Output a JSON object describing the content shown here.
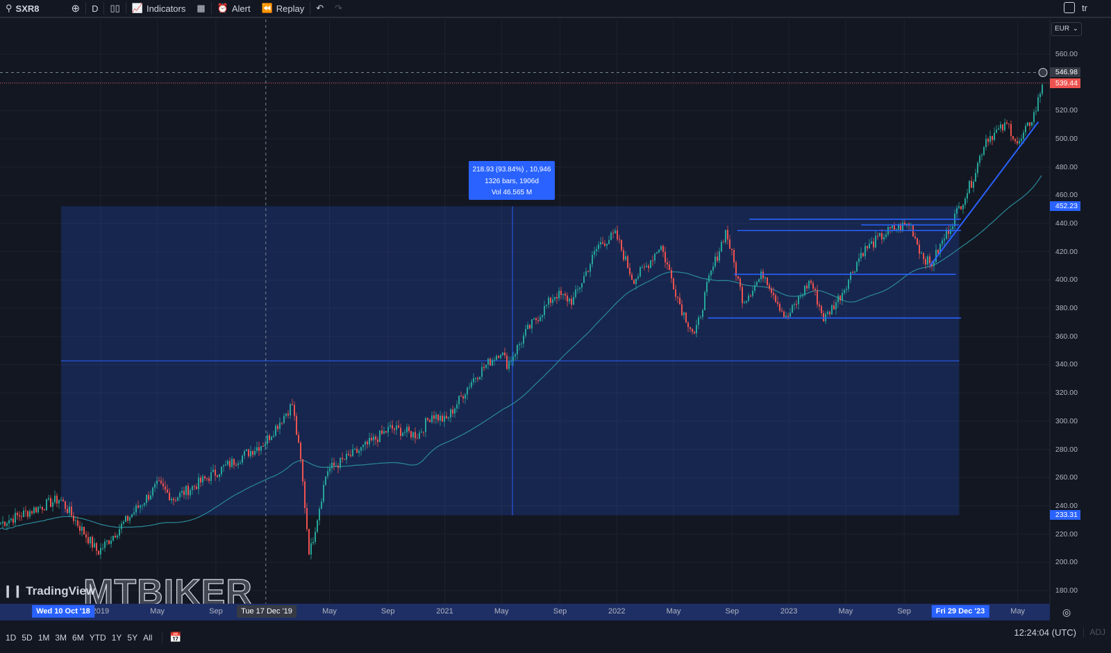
{
  "toolbar": {
    "symbol": "SXR8",
    "interval": "D",
    "indicators": "Indicators",
    "alert": "Alert",
    "replay": "Replay",
    "right_text": "tr"
  },
  "price_axis": {
    "currency": "EUR",
    "ticks": [
      "560.00",
      "540.00",
      "520.00",
      "500.00",
      "480.00",
      "460.00",
      "440.00",
      "420.00",
      "400.00",
      "380.00",
      "360.00",
      "340.00",
      "320.00",
      "300.00",
      "280.00",
      "260.00",
      "240.00",
      "220.00",
      "200.00",
      "180.00"
    ],
    "crosshair_label": "546.98",
    "last_price_label": "539.44",
    "range_top_label": "452.23",
    "range_bottom_label": "233.31"
  },
  "time_axis": {
    "labels": [
      {
        "t": "2019",
        "v": 2019.0
      },
      {
        "t": "May",
        "v": 2019.33
      },
      {
        "t": "Sep",
        "v": 2019.67
      },
      {
        "t": "May",
        "v": 2020.33
      },
      {
        "t": "Sep",
        "v": 2020.67
      },
      {
        "t": "2021",
        "v": 2021.0
      },
      {
        "t": "May",
        "v": 2021.33
      },
      {
        "t": "Sep",
        "v": 2021.67
      },
      {
        "t": "2022",
        "v": 2022.0
      },
      {
        "t": "May",
        "v": 2022.33
      },
      {
        "t": "Sep",
        "v": 2022.67
      },
      {
        "t": "2023",
        "v": 2023.0
      },
      {
        "t": "May",
        "v": 2023.33
      },
      {
        "t": "Sep",
        "v": 2023.67
      },
      {
        "t": "May",
        "v": 2024.33
      }
    ],
    "range_start": "Wed 10 Oct '18",
    "crosshair_date": "Tue 17 Dec '19",
    "range_end": "Fri 29 Dec '23"
  },
  "measure": {
    "line1": "218.93 (93.84%) , 10,946",
    "line2": "1326 bars, 1906d",
    "line3": "Vol 46.565 M"
  },
  "bottom": {
    "ranges": [
      "1D",
      "5D",
      "1M",
      "3M",
      "6M",
      "YTD",
      "1Y",
      "5Y",
      "All"
    ],
    "clock": "12:24:04 (UTC)",
    "adj": "ADJ"
  },
  "watermark": {
    "brand": "TradingView",
    "overlay": "MTBIKER"
  },
  "colors": {
    "up": "#26a69a",
    "down": "#ef5350",
    "accent": "#2962ff",
    "ma": "#2a8a9a"
  },
  "chart_data": {
    "type": "candlestick",
    "ylim": [
      170,
      570
    ],
    "xlim": [
      2018.415,
      2024.52
    ],
    "series_keypoints": [
      [
        2018.42,
        228
      ],
      [
        2018.76,
        245
      ],
      [
        2018.98,
        207
      ],
      [
        2019.33,
        255
      ],
      [
        2019.42,
        245
      ],
      [
        2019.75,
        270
      ],
      [
        2019.95,
        285
      ],
      [
        2020.11,
        312
      ],
      [
        2020.16,
        270
      ],
      [
        2020.21,
        205
      ],
      [
        2020.31,
        265
      ],
      [
        2020.51,
        280
      ],
      [
        2020.68,
        295
      ],
      [
        2020.84,
        290
      ],
      [
        2020.92,
        305
      ],
      [
        2021.0,
        300
      ],
      [
        2021.16,
        330
      ],
      [
        2021.32,
        350
      ],
      [
        2021.36,
        340
      ],
      [
        2021.48,
        365
      ],
      [
        2021.64,
        390
      ],
      [
        2021.74,
        385
      ],
      [
        2021.89,
        425
      ],
      [
        2021.99,
        432
      ],
      [
        2022.09,
        400
      ],
      [
        2022.17,
        410
      ],
      [
        2022.25,
        425
      ],
      [
        2022.37,
        380
      ],
      [
        2022.45,
        360
      ],
      [
        2022.53,
        400
      ],
      [
        2022.63,
        435
      ],
      [
        2022.73,
        385
      ],
      [
        2022.85,
        405
      ],
      [
        2022.98,
        372
      ],
      [
        2023.12,
        400
      ],
      [
        2023.2,
        372
      ],
      [
        2023.3,
        390
      ],
      [
        2023.42,
        420
      ],
      [
        2023.58,
        435
      ],
      [
        2023.7,
        440
      ],
      [
        2023.76,
        420
      ],
      [
        2023.82,
        410
      ],
      [
        2023.94,
        440
      ],
      [
        2024.06,
        470
      ],
      [
        2024.14,
        500
      ],
      [
        2024.27,
        510
      ],
      [
        2024.33,
        495
      ],
      [
        2024.43,
        520
      ],
      [
        2024.47,
        540
      ]
    ],
    "price_range": {
      "t0": 2018.77,
      "t1": 2023.99,
      "p0": 233.31,
      "p1": 452.23
    },
    "hlines": [
      [
        2022.77,
        2024.0,
        443
      ],
      [
        2022.7,
        2024.0,
        435
      ],
      [
        2023.42,
        2023.99,
        439
      ],
      [
        2022.68,
        2023.97,
        404
      ],
      [
        2022.53,
        2024.0,
        373
      ]
    ],
    "trendline": [
      [
        2023.82,
        410
      ],
      [
        2024.45,
        512
      ]
    ],
    "crosshair": {
      "t": 2019.96,
      "p": 546.98
    },
    "last_price": 539.44
  }
}
